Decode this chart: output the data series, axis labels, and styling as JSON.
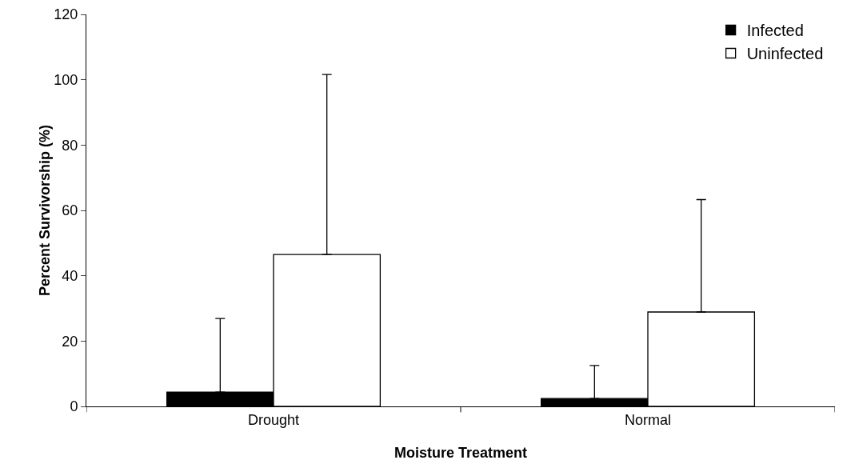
{
  "chart_data": {
    "type": "bar",
    "xlabel": "Moisture Treatment",
    "ylabel": "Percent Survivorship (%)",
    "categories": [
      "Drought",
      "Normal"
    ],
    "series": [
      {
        "name": "Infected",
        "color": "#000000",
        "values": [
          4.4,
          2.4
        ],
        "errors": [
          [
            4.4,
            26.9
          ],
          [
            2.4,
            12.5
          ]
        ]
      },
      {
        "name": "Uninfected",
        "color": "#ffffff",
        "values": [
          46.5,
          28.9
        ],
        "errors": [
          [
            46.5,
            101.6
          ],
          [
            28.9,
            63.3
          ]
        ]
      }
    ],
    "ylim": [
      0,
      120
    ],
    "yticks": [
      0,
      20,
      40,
      60,
      80,
      100,
      120
    ],
    "grid": false,
    "legend": "top right"
  }
}
